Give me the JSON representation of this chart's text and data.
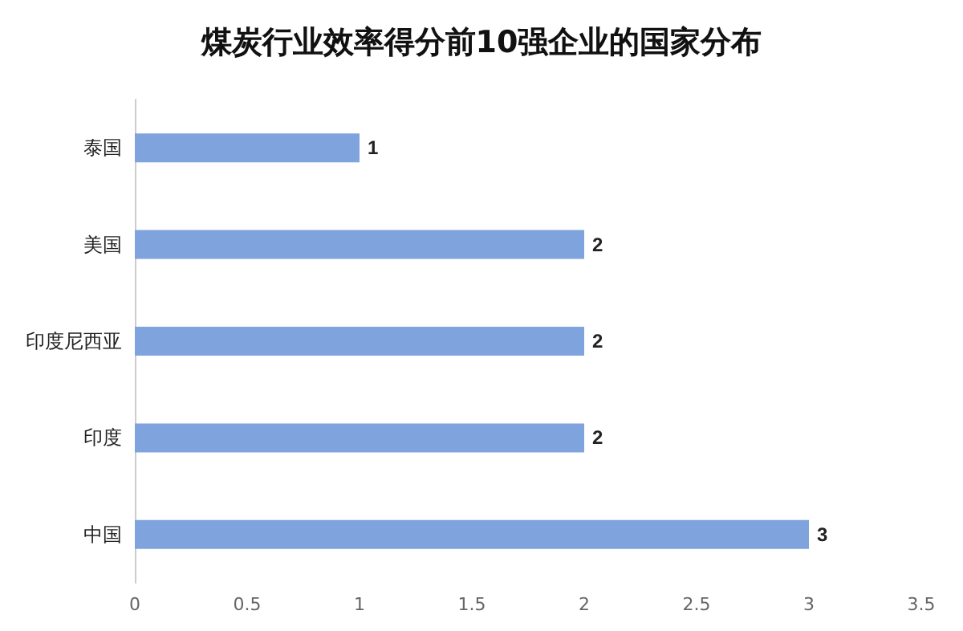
{
  "chart_data": {
    "type": "bar",
    "orientation": "horizontal",
    "title": "煤炭行业效率得分前10强企业的国家分布",
    "categories": [
      "泰国",
      "美国",
      "印度尼西亚",
      "印度",
      "中国"
    ],
    "values": [
      1,
      2,
      2,
      2,
      3
    ],
    "color": "#7fa3dc",
    "xlim": [
      0,
      3.5
    ],
    "xticks": [
      0,
      0.5,
      1,
      1.5,
      2,
      2.5,
      3,
      3.5
    ],
    "grid": false,
    "data_labels": true
  }
}
